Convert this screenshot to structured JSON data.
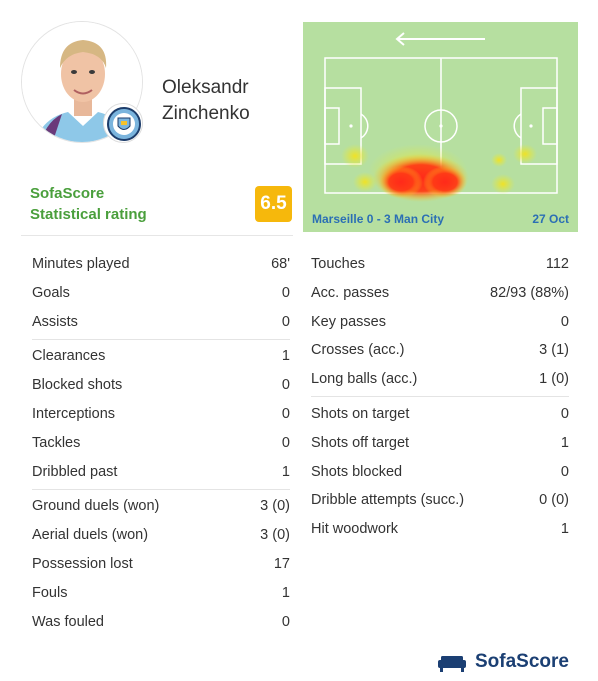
{
  "player": {
    "name": "Oleksandr Zinchenko"
  },
  "rating": {
    "brand": "SofaScore",
    "caption": "Statistical rating",
    "value": "6.5"
  },
  "heatmap": {
    "match": "Marseille 0 - 3 Man City",
    "date": "27 Oct"
  },
  "left_stats": [
    [
      {
        "label": "Minutes played",
        "value": "68'"
      },
      {
        "label": "Goals",
        "value": "0"
      },
      {
        "label": "Assists",
        "value": "0"
      }
    ],
    [
      {
        "label": "Clearances",
        "value": "1"
      },
      {
        "label": "Blocked shots",
        "value": "0"
      },
      {
        "label": "Interceptions",
        "value": "0"
      },
      {
        "label": "Tackles",
        "value": "0"
      },
      {
        "label": "Dribbled past",
        "value": "1"
      }
    ],
    [
      {
        "label": "Ground duels (won)",
        "value": "3 (0)"
      },
      {
        "label": "Aerial duels (won)",
        "value": "3 (0)"
      },
      {
        "label": "Possession lost",
        "value": "17"
      },
      {
        "label": "Fouls",
        "value": "1"
      },
      {
        "label": "Was fouled",
        "value": "0"
      }
    ]
  ],
  "right_stats": [
    [
      {
        "label": "Touches",
        "value": "112"
      },
      {
        "label": "Acc. passes",
        "value": "82/93 (88%)"
      },
      {
        "label": "Key passes",
        "value": "0"
      },
      {
        "label": "Crosses (acc.)",
        "value": "3 (1)"
      },
      {
        "label": "Long balls (acc.)",
        "value": "1 (0)"
      }
    ],
    [
      {
        "label": "Shots on target",
        "value": "0"
      },
      {
        "label": "Shots off target",
        "value": "1"
      },
      {
        "label": "Shots blocked",
        "value": "0"
      },
      {
        "label": "Dribble attempts (succ.)",
        "value": "0 (0)"
      },
      {
        "label": "Hit woodwork",
        "value": "1"
      }
    ]
  ],
  "footer": {
    "logo_text": "SofaScore"
  }
}
